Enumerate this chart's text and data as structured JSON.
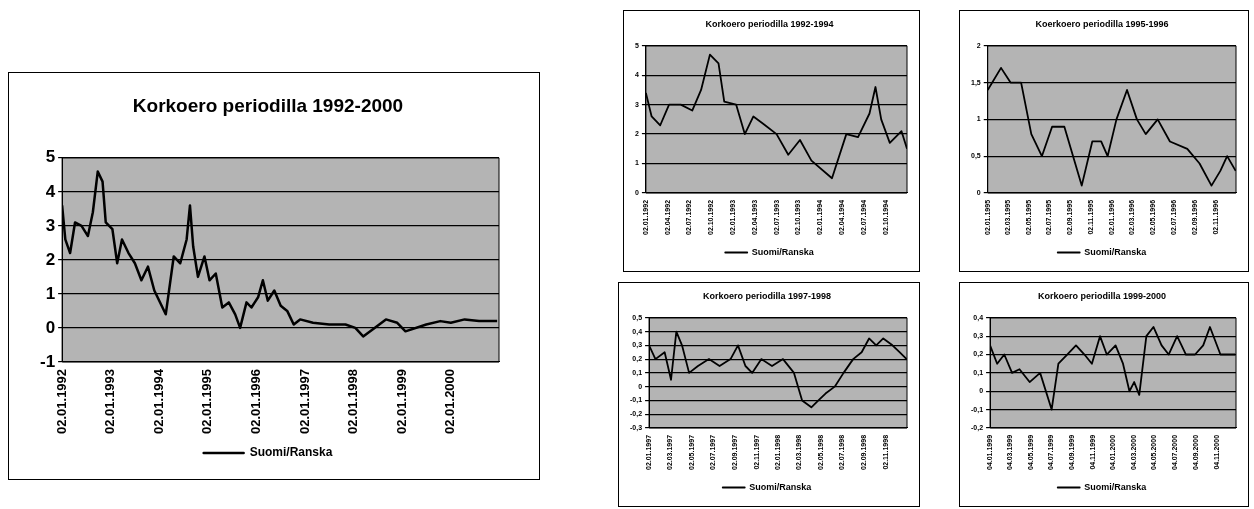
{
  "chart_data": [
    {
      "type": "line",
      "title": "Korkoero periodilla 1992-2000",
      "legend": "bottom",
      "grid": "y",
      "marker": "none",
      "line_style": "solid",
      "x": [
        "1992-01-02",
        "1992-01-26",
        "1992-03-02",
        "1992-04-08",
        "1992-05-27",
        "1992-07-14",
        "1992-08-20",
        "1992-09-26",
        "1992-11-01",
        "1992-11-25",
        "1993-01-14",
        "1993-02-19",
        "1993-03-27",
        "1993-05-15",
        "1993-07-02",
        "1993-08-20",
        "1993-10-08",
        "1993-11-25",
        "1994-02-19",
        "1994-04-20",
        "1994-06-08",
        "1994-07-26",
        "1994-08-20",
        "1994-09-13",
        "1994-10-19",
        "1994-12-07",
        "1995-01-14",
        "1995-03-02",
        "1995-04-20",
        "1995-06-08",
        "1995-07-26",
        "1995-09-01",
        "1995-10-19",
        "1995-11-25",
        "1996-01-14",
        "1996-02-19",
        "1996-03-27",
        "1996-05-15",
        "1996-07-02",
        "1996-08-20",
        "1996-10-08",
        "1996-11-25",
        "1997-03-02",
        "1997-07-02",
        "1997-11-01",
        "1998-01-14",
        "1998-03-14",
        "1998-06-08",
        "1998-09-01",
        "1998-11-25",
        "1999-01-26",
        "1999-07-01",
        "1999-10-15",
        "2000-01-02",
        "2000-04-15",
        "2000-08-01",
        "2000-12-15"
      ],
      "series": [
        {
          "name": "Suomi/Ranska",
          "color": "#000000",
          "values": [
            3.6,
            2.6,
            2.2,
            3.1,
            3.0,
            2.7,
            3.4,
            4.6,
            4.3,
            3.1,
            2.9,
            1.9,
            2.6,
            2.2,
            1.9,
            1.4,
            1.8,
            1.1,
            0.4,
            2.1,
            1.9,
            2.6,
            3.6,
            2.4,
            1.5,
            2.1,
            1.4,
            1.6,
            0.6,
            0.75,
            0.4,
            0,
            0.75,
            0.6,
            0.9,
            1.4,
            0.8,
            1.1,
            0.65,
            0.5,
            0.1,
            0.25,
            0.15,
            0.1,
            0.1,
            0,
            -0.25,
            0,
            0.25,
            0.15,
            -0.1,
            0.1,
            0.2,
            0.15,
            0.25,
            0.2,
            0.2
          ]
        }
      ],
      "xlim": [
        "1992-01-02",
        "2000-12-29"
      ],
      "xticks": [
        {
          "value": "1992-01-02",
          "label": "02.01.1992"
        },
        {
          "value": "1993-01-02",
          "label": "02.01.1993"
        },
        {
          "value": "1994-01-02",
          "label": "02.01.1994"
        },
        {
          "value": "1995-01-02",
          "label": "02.01.1995"
        },
        {
          "value": "1996-01-02",
          "label": "02.01.1996"
        },
        {
          "value": "1997-01-02",
          "label": "02.01.1997"
        },
        {
          "value": "1998-01-02",
          "label": "02.01.1998"
        },
        {
          "value": "1999-01-02",
          "label": "02.01.1999"
        },
        {
          "value": "2000-01-02",
          "label": "02.01.2000"
        }
      ],
      "ylim": [
        -1,
        5
      ],
      "yticks": [
        -1,
        0,
        1,
        2,
        3,
        4,
        5
      ]
    },
    {
      "type": "line",
      "title": "Korkoero periodilla 1992-1994",
      "legend": "bottom",
      "grid": "y",
      "marker": "none",
      "line_style": "solid",
      "x": [
        "1992-01-02",
        "1992-01-26",
        "1992-03-02",
        "1992-04-08",
        "1992-05-27",
        "1992-07-14",
        "1992-08-20",
        "1992-09-26",
        "1992-11-01",
        "1992-11-25",
        "1993-01-14",
        "1993-02-19",
        "1993-03-27",
        "1993-05-15",
        "1993-07-02",
        "1993-08-20",
        "1993-10-08",
        "1993-11-25",
        "1994-02-19",
        "1994-04-20",
        "1994-06-08",
        "1994-07-26",
        "1994-08-20",
        "1994-09-13",
        "1994-10-19",
        "1994-12-07",
        "1994-12-30"
      ],
      "series": [
        {
          "name": "Suomi/Ranska",
          "color": "#000000",
          "values": [
            3.4,
            2.6,
            2.3,
            3.0,
            3.0,
            2.8,
            3.5,
            4.7,
            4.4,
            3.1,
            3.0,
            2.0,
            2.6,
            2.3,
            2.0,
            1.3,
            1.8,
            1.1,
            0.5,
            2.0,
            1.9,
            2.7,
            3.6,
            2.5,
            1.7,
            2.1,
            1.5
          ]
        }
      ],
      "xlim": [
        "1992-01-02",
        "1994-12-30"
      ],
      "xticks": [
        {
          "value": "1992-01-02",
          "label": "02.01.1992"
        },
        {
          "value": "1992-04-02",
          "label": "02.04.1992"
        },
        {
          "value": "1992-07-02",
          "label": "02.07.1992"
        },
        {
          "value": "1992-10-02",
          "label": "02.10.1992"
        },
        {
          "value": "1993-01-02",
          "label": "02.01.1993"
        },
        {
          "value": "1993-04-02",
          "label": "02.04.1993"
        },
        {
          "value": "1993-07-02",
          "label": "02.07.1993"
        },
        {
          "value": "1993-10-02",
          "label": "02.10.1993"
        },
        {
          "value": "1994-01-02",
          "label": "02.01.1994"
        },
        {
          "value": "1994-04-02",
          "label": "02.04.1994"
        },
        {
          "value": "1994-07-02",
          "label": "02.07.1994"
        },
        {
          "value": "1994-10-02",
          "label": "02.10.1994"
        }
      ],
      "ylim": [
        0,
        5
      ],
      "yticks": [
        0,
        1,
        2,
        3,
        4,
        5
      ]
    },
    {
      "type": "line",
      "title": "Koerkoero periodilla 1995-1996",
      "legend": "bottom",
      "grid": "y",
      "marker": "none",
      "line_style": "solid",
      "x": [
        "1995-01-02",
        "1995-02-10",
        "1995-03-10",
        "1995-04-10",
        "1995-05-10",
        "1995-06-10",
        "1995-07-10",
        "1995-08-15",
        "1995-10-05",
        "1995-11-05",
        "1995-12-01",
        "1995-12-20",
        "1996-01-15",
        "1996-02-15",
        "1996-03-15",
        "1996-04-10",
        "1996-05-15",
        "1996-06-20",
        "1996-08-10",
        "1996-09-15",
        "1996-10-20",
        "1996-11-15",
        "1996-12-05",
        "1996-12-30"
      ],
      "series": [
        {
          "name": "Suomi/Ranska",
          "color": "#000000",
          "values": [
            1.4,
            1.7,
            1.5,
            1.5,
            0.8,
            0.5,
            0.9,
            0.9,
            0.1,
            0.7,
            0.7,
            0.5,
            1.0,
            1.4,
            1.0,
            0.8,
            1.0,
            0.7,
            0.6,
            0.4,
            0.1,
            0.3,
            0.5,
            0.3
          ]
        }
      ],
      "xlim": [
        "1995-01-02",
        "1996-12-31"
      ],
      "xticks": [
        {
          "value": "1995-01-02",
          "label": "02.01.1995"
        },
        {
          "value": "1995-03-02",
          "label": "02.03.1995"
        },
        {
          "value": "1995-05-02",
          "label": "02.05.1995"
        },
        {
          "value": "1995-07-02",
          "label": "02.07.1995"
        },
        {
          "value": "1995-09-02",
          "label": "02.09.1995"
        },
        {
          "value": "1995-11-02",
          "label": "02.11.1995"
        },
        {
          "value": "1996-01-02",
          "label": "02.01.1996"
        },
        {
          "value": "1996-03-02",
          "label": "02.03.1996"
        },
        {
          "value": "1996-05-02",
          "label": "02.05.1996"
        },
        {
          "value": "1996-07-02",
          "label": "02.07.1996"
        },
        {
          "value": "1996-09-02",
          "label": "02.09.1996"
        },
        {
          "value": "1996-11-02",
          "label": "02.11.1996"
        }
      ],
      "ylim": [
        0,
        2
      ],
      "yticks": [
        0,
        {
          "value": 0.5,
          "label": "0,5"
        },
        1,
        {
          "value": 1.5,
          "label": "1,5"
        },
        2
      ]
    },
    {
      "type": "line",
      "title": "Korkoero periodilla 1997-1998",
      "legend": "bottom",
      "grid": "y",
      "marker": "none",
      "line_style": "solid",
      "x": [
        "1997-01-02",
        "1997-01-20",
        "1997-02-15",
        "1997-03-05",
        "1997-03-20",
        "1997-04-05",
        "1997-04-25",
        "1997-05-20",
        "1997-06-20",
        "1997-07-20",
        "1997-08-20",
        "1997-09-10",
        "1997-10-01",
        "1997-10-20",
        "1997-11-15",
        "1997-12-15",
        "1998-01-15",
        "1998-02-15",
        "1998-03-10",
        "1998-04-05",
        "1998-04-25",
        "1998-05-15",
        "1998-06-10",
        "1998-07-05",
        "1998-08-01",
        "1998-08-25",
        "1998-09-15",
        "1998-10-05",
        "1998-10-25",
        "1998-11-20",
        "1998-12-10",
        "1998-12-30"
      ],
      "series": [
        {
          "name": "Suomi/Ranska",
          "color": "#000000",
          "values": [
            0.3,
            0.2,
            0.25,
            0.05,
            0.4,
            0.3,
            0.1,
            0.15,
            0.2,
            0.15,
            0.2,
            0.3,
            0.15,
            0.1,
            0.2,
            0.15,
            0.2,
            0.1,
            -0.1,
            -0.15,
            -0.1,
            -0.05,
            0.0,
            0.1,
            0.2,
            0.25,
            0.35,
            0.3,
            0.35,
            0.3,
            0.25,
            0.2
          ]
        }
      ],
      "xlim": [
        "1997-01-02",
        "1998-12-31"
      ],
      "xticks": [
        {
          "value": "1997-01-02",
          "label": "02.01.1997"
        },
        {
          "value": "1997-03-02",
          "label": "02.03.1997"
        },
        {
          "value": "1997-05-02",
          "label": "02.05.1997"
        },
        {
          "value": "1997-07-02",
          "label": "02.07.1997"
        },
        {
          "value": "1997-09-02",
          "label": "02.09.1997"
        },
        {
          "value": "1997-11-02",
          "label": "02.11.1997"
        },
        {
          "value": "1998-01-02",
          "label": "02.01.1998"
        },
        {
          "value": "1998-03-02",
          "label": "02.03.1998"
        },
        {
          "value": "1998-05-02",
          "label": "02.05.1998"
        },
        {
          "value": "1998-07-02",
          "label": "02.07.1998"
        },
        {
          "value": "1998-09-02",
          "label": "02.09.1998"
        },
        {
          "value": "1998-11-02",
          "label": "02.11.1998"
        }
      ],
      "ylim": [
        -0.3,
        0.5
      ],
      "yticks": [
        {
          "value": -0.3,
          "label": "-0,3"
        },
        {
          "value": -0.2,
          "label": "-0,2"
        },
        {
          "value": -0.1,
          "label": "-0,1"
        },
        0,
        {
          "value": 0.1,
          "label": "0,1"
        },
        {
          "value": 0.2,
          "label": "0,2"
        },
        {
          "value": 0.3,
          "label": "0,3"
        },
        {
          "value": 0.4,
          "label": "0,4"
        },
        {
          "value": 0.5,
          "label": "0,5"
        }
      ]
    },
    {
      "type": "line",
      "title": "Korkoero periodilla 1999-2000",
      "legend": "bottom",
      "grid": "y",
      "marker": "none",
      "line_style": "solid",
      "x": [
        "1999-01-04",
        "1999-01-25",
        "1999-02-15",
        "1999-03-10",
        "1999-04-01",
        "1999-05-01",
        "1999-06-01",
        "1999-07-05",
        "1999-07-25",
        "1999-08-20",
        "1999-09-15",
        "1999-10-10",
        "1999-11-01",
        "1999-11-25",
        "1999-12-15",
        "2000-01-10",
        "2000-02-01",
        "2000-02-20",
        "2000-03-05",
        "2000-03-20",
        "2000-04-10",
        "2000-05-01",
        "2000-05-25",
        "2000-06-15",
        "2000-07-10",
        "2000-08-05",
        "2000-09-01",
        "2000-09-25",
        "2000-10-15",
        "2000-11-15",
        "2000-12-29"
      ],
      "series": [
        {
          "name": "Suomi/Ranska",
          "color": "#000000",
          "values": [
            0.25,
            0.15,
            0.2,
            0.1,
            0.12,
            0.05,
            0.1,
            -0.1,
            0.15,
            0.2,
            0.25,
            0.2,
            0.15,
            0.3,
            0.2,
            0.25,
            0.15,
            0.0,
            0.05,
            -0.02,
            0.3,
            0.35,
            0.25,
            0.2,
            0.3,
            0.2,
            0.2,
            0.25,
            0.35,
            0.2,
            0.2
          ]
        }
      ],
      "xlim": [
        "1999-01-04",
        "2000-12-31"
      ],
      "xticks": [
        {
          "value": "1999-01-04",
          "label": "04.01.1999"
        },
        {
          "value": "1999-03-04",
          "label": "04.03.1999"
        },
        {
          "value": "1999-05-04",
          "label": "04.05.1999"
        },
        {
          "value": "1999-07-04",
          "label": "04.07.1999"
        },
        {
          "value": "1999-09-04",
          "label": "04.09.1999"
        },
        {
          "value": "1999-11-04",
          "label": "04.11.1999"
        },
        {
          "value": "2000-01-04",
          "label": "04.01.2000"
        },
        {
          "value": "2000-03-04",
          "label": "04.03.2000"
        },
        {
          "value": "2000-05-04",
          "label": "04.05.2000"
        },
        {
          "value": "2000-07-04",
          "label": "04.07.2000"
        },
        {
          "value": "2000-09-04",
          "label": "04.09.2000"
        },
        {
          "value": "2000-11-04",
          "label": "04.11.2000"
        }
      ],
      "ylim": [
        -0.2,
        0.4
      ],
      "yticks": [
        {
          "value": -0.2,
          "label": "-0,2"
        },
        {
          "value": -0.1,
          "label": "-0,1"
        },
        0,
        {
          "value": 0.1,
          "label": "0,1"
        },
        {
          "value": 0.2,
          "label": "0,2"
        },
        {
          "value": 0.3,
          "label": "0,3"
        },
        {
          "value": 0.4,
          "label": "0,4"
        }
      ]
    }
  ]
}
